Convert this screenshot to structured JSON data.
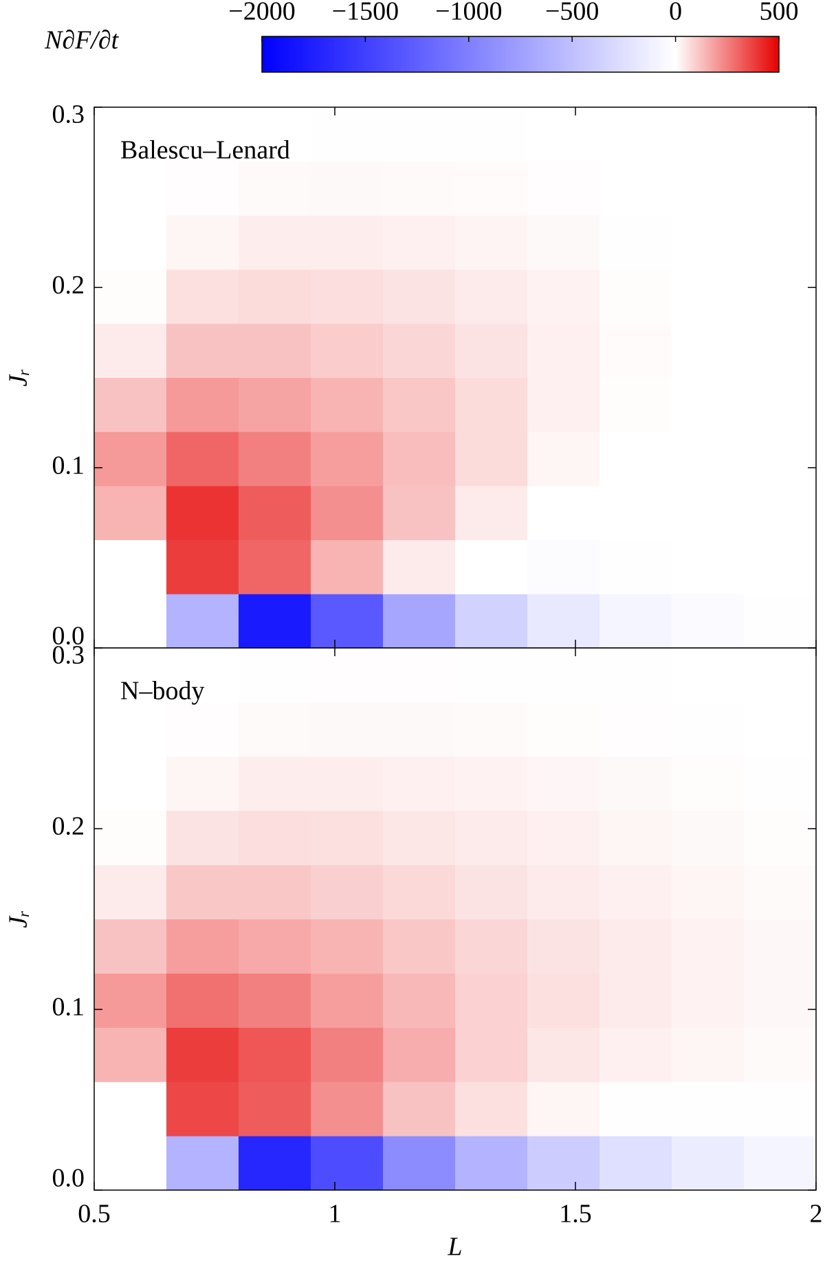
{
  "colorbar": {
    "label": "N∂F/∂t",
    "lim": [
      -2000,
      500
    ],
    "ticks": [
      {
        "value": -2000,
        "label": "−2000"
      },
      {
        "value": -1500,
        "label": "−1500"
      },
      {
        "value": -1000,
        "label": "−1000"
      },
      {
        "value": -500,
        "label": "−500"
      },
      0,
      500
    ],
    "colors": {
      "negative": "#0000ff",
      "zero": "#ffffff",
      "positive": "#e60000"
    }
  },
  "chart_data": [
    {
      "type": "heatmap",
      "annotation": "Balescu–Lenard",
      "ylabel": "Jᵣ",
      "x_edges": [
        0.5,
        0.65,
        0.8,
        0.95,
        1.1,
        1.25,
        1.4,
        1.55,
        1.7,
        1.85,
        2.0
      ],
      "y_edges": [
        0,
        0.03,
        0.06,
        0.09,
        0.12,
        0.15,
        0.18,
        0.21,
        0.24,
        0.27,
        0.3
      ],
      "values": [
        [
          0,
          -600,
          -1800,
          -1300,
          -700,
          -350,
          -180,
          -80,
          -30,
          -5
        ],
        [
          0,
          380,
          300,
          150,
          40,
          0,
          -20,
          -10,
          0,
          0
        ],
        [
          150,
          400,
          320,
          220,
          120,
          40,
          0,
          0,
          0,
          0
        ],
        [
          200,
          300,
          250,
          190,
          130,
          70,
          20,
          0,
          0,
          0
        ],
        [
          120,
          200,
          180,
          150,
          110,
          70,
          30,
          5,
          0,
          0
        ],
        [
          40,
          120,
          120,
          100,
          80,
          55,
          30,
          8,
          0,
          0
        ],
        [
          5,
          60,
          70,
          65,
          55,
          40,
          25,
          5,
          0,
          0
        ],
        [
          0,
          20,
          35,
          35,
          30,
          22,
          12,
          2,
          0,
          0
        ],
        [
          0,
          3,
          10,
          12,
          10,
          8,
          3,
          0,
          0,
          0
        ],
        [
          0,
          0,
          0,
          2,
          2,
          1,
          0,
          0,
          0,
          0
        ]
      ],
      "xlim": [
        0.5,
        2
      ],
      "ylim": [
        0,
        0.3
      ],
      "xticks": [
        0.5,
        1,
        1.5,
        2
      ],
      "yticks": [
        {
          "value": 0,
          "label": "0.0"
        },
        0.1,
        0.2,
        0.3
      ]
    },
    {
      "type": "heatmap",
      "annotation": "N–body",
      "ylabel": "Jᵣ",
      "xlabel": "L",
      "x_edges": [
        0.5,
        0.65,
        0.8,
        0.95,
        1.1,
        1.25,
        1.4,
        1.55,
        1.7,
        1.85,
        2.0
      ],
      "y_edges": [
        0,
        0.03,
        0.06,
        0.09,
        0.12,
        0.15,
        0.18,
        0.21,
        0.24,
        0.27,
        0.3
      ],
      "values": [
        [
          0,
          -600,
          -1700,
          -1400,
          -900,
          -600,
          -400,
          -250,
          -150,
          -80
        ],
        [
          0,
          360,
          320,
          220,
          120,
          60,
          20,
          -10,
          -10,
          -5
        ],
        [
          150,
          380,
          330,
          250,
          160,
          90,
          50,
          30,
          20,
          10
        ],
        [
          200,
          280,
          250,
          190,
          140,
          90,
          60,
          40,
          25,
          15
        ],
        [
          120,
          190,
          170,
          150,
          110,
          80,
          55,
          40,
          25,
          15
        ],
        [
          40,
          110,
          110,
          95,
          75,
          55,
          40,
          30,
          20,
          10
        ],
        [
          5,
          55,
          65,
          60,
          50,
          40,
          30,
          20,
          12,
          5
        ],
        [
          0,
          20,
          35,
          35,
          30,
          25,
          18,
          12,
          5,
          2
        ],
        [
          0,
          3,
          10,
          12,
          12,
          10,
          6,
          4,
          2,
          0
        ],
        [
          0,
          0,
          2,
          3,
          3,
          2,
          2,
          1,
          0,
          0
        ]
      ],
      "xlim": [
        0.5,
        2
      ],
      "ylim": [
        0,
        0.3
      ],
      "xticks": [
        {
          "value": 0.5,
          "label": "0.5"
        },
        1,
        1.5,
        2
      ],
      "yticks": [
        {
          "value": 0,
          "label": "0.0"
        },
        0.1,
        0.2,
        0.3
      ]
    }
  ]
}
